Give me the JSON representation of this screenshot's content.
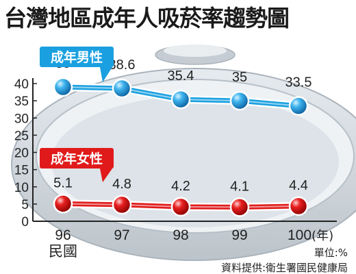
{
  "colors": {
    "male": "#1aa0e0",
    "female": "#e01a1a",
    "dish": "#cfd6dd"
  },
  "chart_data": {
    "type": "line",
    "title": "台灣地區成年人吸菸率趨勢圖",
    "categories": [
      "96",
      "97",
      "98",
      "99",
      "100"
    ],
    "x_axis_first_suffix": "民國",
    "x_axis_last_suffix": "(年)",
    "ylim": [
      0,
      40
    ],
    "yticks": [
      0,
      5,
      10,
      15,
      20,
      25,
      30,
      35,
      40
    ],
    "unit_note": "單位:%",
    "source_note": "資料提供:衛生署國民健康局",
    "series": [
      {
        "name": "成年男性",
        "values": [
          39,
          38.6,
          35.4,
          35,
          33.5
        ]
      },
      {
        "name": "成年女性",
        "values": [
          5.1,
          4.8,
          4.2,
          4.1,
          4.4
        ]
      }
    ]
  }
}
